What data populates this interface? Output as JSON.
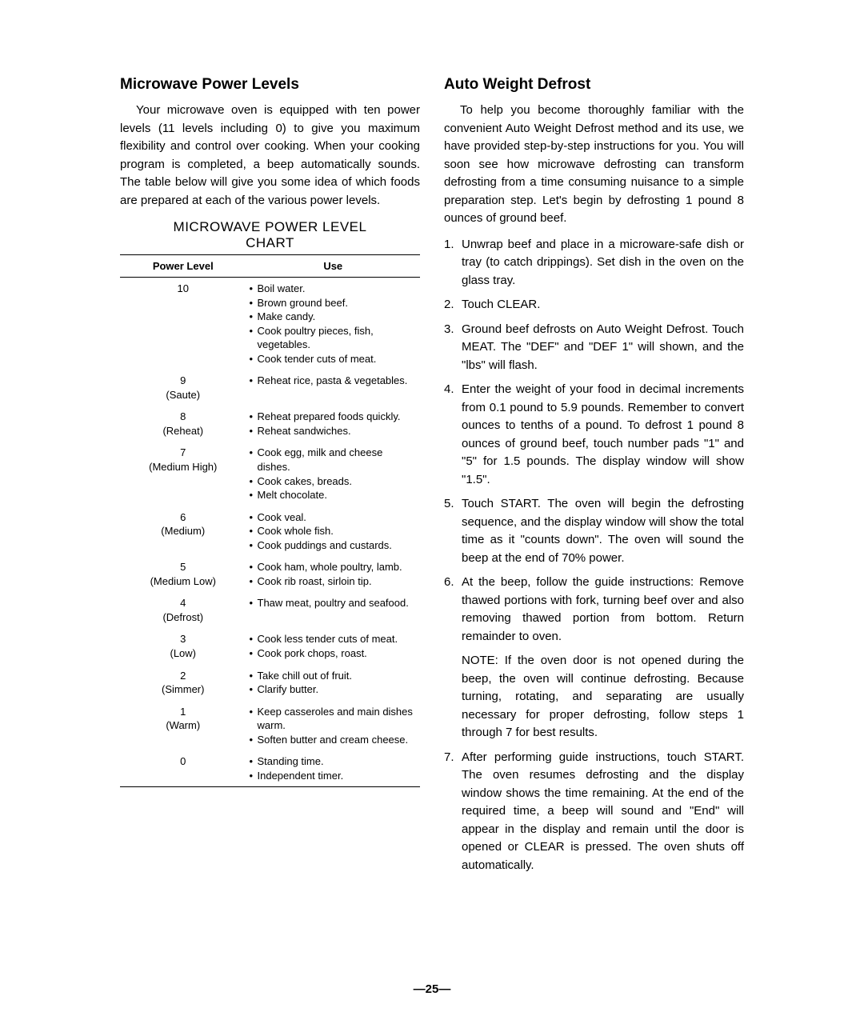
{
  "left": {
    "heading": "Microwave Power Levels",
    "paragraph": "Your microwave oven is equipped with ten power levels (11 levels including 0) to give you maximum flexibility and control over cooking. When your cooking program is completed, a beep automatically sounds. The table below will give you some idea of which foods are prepared at each of the various power levels.",
    "chart_title_line1": "MICROWAVE POWER LEVEL",
    "chart_title_line2": "CHART",
    "table": {
      "headers": [
        "Power Level",
        "Use"
      ],
      "rows": [
        {
          "level_num": "10",
          "level_name": "",
          "uses": [
            "Boil water.",
            "Brown ground beef.",
            "Make candy.",
            "Cook poultry pieces, fish, vegetables.",
            "Cook tender cuts of meat."
          ]
        },
        {
          "level_num": "9",
          "level_name": "(Saute)",
          "uses": [
            "Reheat rice, pasta & vegetables."
          ]
        },
        {
          "level_num": "8",
          "level_name": "(Reheat)",
          "uses": [
            "Reheat prepared foods quickly.",
            "Reheat sandwiches."
          ]
        },
        {
          "level_num": "7",
          "level_name": "(Medium High)",
          "uses": [
            "Cook egg, milk and cheese dishes.",
            "Cook cakes, breads.",
            "Melt chocolate."
          ]
        },
        {
          "level_num": "6",
          "level_name": "(Medium)",
          "uses": [
            "Cook veal.",
            "Cook whole fish.",
            "Cook puddings and custards."
          ]
        },
        {
          "level_num": "5",
          "level_name": "(Medium Low)",
          "uses": [
            "Cook ham, whole poultry, lamb.",
            "Cook rib roast, sirloin tip."
          ]
        },
        {
          "level_num": "4",
          "level_name": "(Defrost)",
          "uses": [
            "Thaw meat, poultry and seafood."
          ]
        },
        {
          "level_num": "3",
          "level_name": "(Low)",
          "uses": [
            "Cook less tender cuts of meat.",
            "Cook pork chops, roast."
          ]
        },
        {
          "level_num": "2",
          "level_name": "(Simmer)",
          "uses": [
            "Take chill out of fruit.",
            "Clarify butter."
          ]
        },
        {
          "level_num": "1",
          "level_name": "(Warm)",
          "uses": [
            "Keep casseroles and main dishes warm.",
            "Soften butter and cream cheese."
          ]
        },
        {
          "level_num": "0",
          "level_name": "",
          "uses": [
            "Standing time.",
            "Independent timer."
          ]
        }
      ]
    }
  },
  "right": {
    "heading": "Auto Weight Defrost",
    "paragraph": "To help you become thoroughly familiar with the convenient Auto Weight Defrost method and its use, we have provided step-by-step instructions for you. You will soon see how microwave defrosting can transform defrosting from a time consuming nuisance to a simple preparation step. Let's begin by defrosting 1 pound 8 ounces of ground beef.",
    "steps": [
      "Unwrap beef and place in a microware-safe dish or tray (to catch drippings). Set dish in the oven on the glass tray.",
      "Touch CLEAR.",
      "Ground beef defrosts on Auto Weight Defrost. Touch MEAT. The \"DEF\" and \"DEF 1\" will shown, and the \"lbs\" will flash.",
      "Enter the weight of your food in decimal increments from 0.1 pound to 5.9 pounds. Remember to convert ounces to tenths of a pound. To defrost 1 pound 8 ounces of ground beef, touch number pads \"1\" and \"5\" for 1.5 pounds. The display window will show \"1.5\".",
      "Touch START. The oven will begin the defrosting sequence, and the display window will show the total time as it \"counts down\". The oven will sound the beep at the end of 70% power.",
      "At the beep, follow the guide instructions: Remove thawed portions with fork, turning beef over and also removing thawed portion from bottom. Return remainder to oven.",
      "After performing guide instructions, touch START. The oven resumes defrosting and the display window shows the time remaining. At the end of the required time, a beep will sound and \"End\" will appear in the display and remain until the door is opened or CLEAR is pressed. The oven shuts off automatically."
    ],
    "note": "NOTE: If the oven door is not opened during the beep, the oven will continue defrosting. Because turning, rotating, and separating are usually necessary for proper defrosting, follow steps 1 through 7 for best results."
  },
  "page_number": "—25—"
}
